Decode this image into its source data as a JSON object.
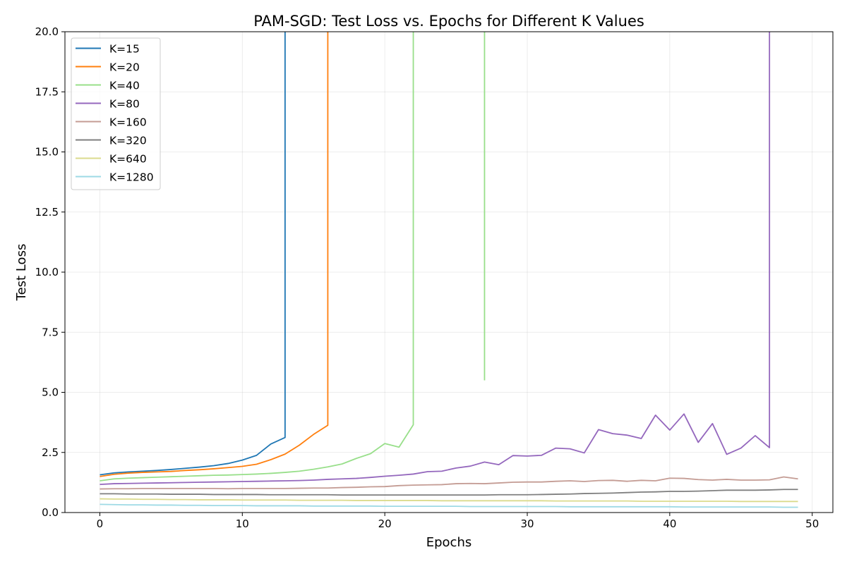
{
  "chart_data": {
    "type": "line",
    "title": "PAM-SGD: Test Loss vs. Epochs for Different K Values",
    "xlabel": "Epochs",
    "ylabel": "Test Loss",
    "xlim": [
      -2.45,
      51.45
    ],
    "ylim": [
      0,
      20
    ],
    "xticks": [
      0,
      10,
      20,
      30,
      40,
      50
    ],
    "yticks": [
      0.0,
      2.5,
      5.0,
      7.5,
      10.0,
      12.5,
      15.0,
      17.5,
      20.0
    ],
    "grid": true,
    "legend_position": "upper-left",
    "series": [
      {
        "name": "K=15",
        "color": "#1f77b4",
        "x": [
          0,
          1,
          2,
          3,
          4,
          5,
          6,
          7,
          8,
          9,
          10,
          11,
          12,
          13,
          13
        ],
        "y": [
          1.57,
          1.65,
          1.69,
          1.72,
          1.75,
          1.79,
          1.84,
          1.89,
          1.95,
          2.04,
          2.18,
          2.38,
          2.85,
          3.12,
          20.5
        ]
      },
      {
        "name": "K=20",
        "color": "#ff7f0e",
        "x": [
          0,
          1,
          2,
          3,
          4,
          5,
          6,
          7,
          8,
          9,
          10,
          11,
          12,
          13,
          14,
          15,
          16,
          16
        ],
        "y": [
          1.5,
          1.59,
          1.64,
          1.67,
          1.69,
          1.71,
          1.75,
          1.78,
          1.82,
          1.87,
          1.92,
          2.01,
          2.2,
          2.43,
          2.8,
          3.25,
          3.63,
          20.5
        ]
      },
      {
        "name": "K=40",
        "color": "#98df8a",
        "x": [
          0,
          1,
          2,
          3,
          4,
          5,
          6,
          7,
          8,
          9,
          10,
          11,
          12,
          13,
          14,
          15,
          16,
          17,
          18,
          19,
          20,
          21,
          22,
          22,
          27,
          27
        ],
        "y": [
          1.32,
          1.4,
          1.43,
          1.45,
          1.47,
          1.49,
          1.51,
          1.53,
          1.55,
          1.56,
          1.58,
          1.6,
          1.63,
          1.67,
          1.72,
          1.8,
          1.9,
          2.02,
          2.25,
          2.45,
          2.87,
          2.72,
          3.65,
          20.5,
          20.5,
          5.5
        ]
      },
      {
        "name": "K=80",
        "color": "#9467bd",
        "x": [
          0,
          1,
          2,
          3,
          4,
          5,
          6,
          7,
          8,
          9,
          10,
          11,
          12,
          13,
          14,
          15,
          16,
          17,
          18,
          19,
          20,
          21,
          22,
          23,
          24,
          25,
          26,
          27,
          28,
          29,
          30,
          31,
          32,
          33,
          34,
          35,
          36,
          37,
          38,
          39,
          40,
          41,
          42,
          43,
          44,
          45,
          46,
          47,
          47
        ],
        "y": [
          1.17,
          1.2,
          1.21,
          1.22,
          1.23,
          1.24,
          1.25,
          1.26,
          1.27,
          1.28,
          1.29,
          1.3,
          1.31,
          1.32,
          1.33,
          1.35,
          1.38,
          1.4,
          1.42,
          1.46,
          1.51,
          1.55,
          1.6,
          1.7,
          1.72,
          1.85,
          1.93,
          2.1,
          1.99,
          2.37,
          2.35,
          2.38,
          2.68,
          2.65,
          2.48,
          3.45,
          3.28,
          3.22,
          3.08,
          4.05,
          3.43,
          4.1,
          2.92,
          3.7,
          2.42,
          2.68,
          3.2,
          2.7,
          20.5
        ]
      },
      {
        "name": "K=160",
        "color": "#c49c94",
        "x": [
          0,
          1,
          2,
          3,
          4,
          5,
          6,
          7,
          8,
          9,
          10,
          11,
          12,
          13,
          14,
          15,
          16,
          17,
          18,
          19,
          20,
          21,
          22,
          23,
          24,
          25,
          26,
          27,
          28,
          29,
          30,
          31,
          32,
          33,
          34,
          35,
          36,
          37,
          38,
          39,
          40,
          41,
          42,
          43,
          44,
          45,
          46,
          47,
          48,
          49
        ],
        "y": [
          0.98,
          0.99,
          0.99,
          1.0,
          1.0,
          1.0,
          1.0,
          1.0,
          1.0,
          0.99,
          1.0,
          1.0,
          1.0,
          1.0,
          1.01,
          1.02,
          1.02,
          1.04,
          1.05,
          1.07,
          1.08,
          1.12,
          1.14,
          1.15,
          1.16,
          1.2,
          1.21,
          1.2,
          1.23,
          1.26,
          1.27,
          1.27,
          1.3,
          1.32,
          1.29,
          1.33,
          1.34,
          1.3,
          1.34,
          1.32,
          1.43,
          1.42,
          1.37,
          1.35,
          1.38,
          1.35,
          1.35,
          1.36,
          1.48,
          1.4
        ]
      },
      {
        "name": "K=320",
        "color": "#7f7f7f",
        "x": [
          0,
          1,
          2,
          3,
          4,
          5,
          6,
          7,
          8,
          9,
          10,
          11,
          12,
          13,
          14,
          15,
          16,
          17,
          18,
          19,
          20,
          21,
          22,
          23,
          24,
          25,
          26,
          27,
          28,
          29,
          30,
          31,
          32,
          33,
          34,
          35,
          36,
          37,
          38,
          39,
          40,
          41,
          42,
          43,
          44,
          45,
          46,
          47,
          48,
          49
        ],
        "y": [
          0.78,
          0.78,
          0.77,
          0.77,
          0.77,
          0.76,
          0.76,
          0.76,
          0.75,
          0.75,
          0.75,
          0.75,
          0.74,
          0.74,
          0.74,
          0.74,
          0.74,
          0.73,
          0.73,
          0.73,
          0.73,
          0.73,
          0.73,
          0.73,
          0.73,
          0.73,
          0.73,
          0.73,
          0.74,
          0.74,
          0.74,
          0.75,
          0.76,
          0.77,
          0.79,
          0.8,
          0.81,
          0.83,
          0.85,
          0.86,
          0.88,
          0.88,
          0.89,
          0.91,
          0.93,
          0.93,
          0.93,
          0.94,
          0.96,
          0.96
        ]
      },
      {
        "name": "K=640",
        "color": "#dbdb8d",
        "x": [
          0,
          1,
          2,
          3,
          4,
          5,
          6,
          7,
          8,
          9,
          10,
          11,
          12,
          13,
          14,
          15,
          16,
          17,
          18,
          19,
          20,
          21,
          22,
          23,
          24,
          25,
          26,
          27,
          28,
          29,
          30,
          31,
          32,
          33,
          34,
          35,
          36,
          37,
          38,
          39,
          40,
          41,
          42,
          43,
          44,
          45,
          46,
          47,
          48,
          49
        ],
        "y": [
          0.57,
          0.56,
          0.56,
          0.55,
          0.55,
          0.54,
          0.54,
          0.53,
          0.53,
          0.53,
          0.52,
          0.52,
          0.52,
          0.52,
          0.51,
          0.51,
          0.51,
          0.51,
          0.5,
          0.5,
          0.5,
          0.5,
          0.5,
          0.5,
          0.49,
          0.49,
          0.49,
          0.49,
          0.49,
          0.49,
          0.49,
          0.49,
          0.48,
          0.48,
          0.48,
          0.48,
          0.48,
          0.48,
          0.47,
          0.47,
          0.47,
          0.47,
          0.47,
          0.47,
          0.47,
          0.46,
          0.46,
          0.46,
          0.46,
          0.46
        ]
      },
      {
        "name": "K=1280",
        "color": "#9edae5",
        "x": [
          0,
          1,
          2,
          3,
          4,
          5,
          6,
          7,
          8,
          9,
          10,
          11,
          12,
          13,
          14,
          15,
          16,
          17,
          18,
          19,
          20,
          21,
          22,
          23,
          24,
          25,
          26,
          27,
          28,
          29,
          30,
          31,
          32,
          33,
          34,
          35,
          36,
          37,
          38,
          39,
          40,
          41,
          42,
          43,
          44,
          45,
          46,
          47,
          48,
          49
        ],
        "y": [
          0.34,
          0.33,
          0.32,
          0.32,
          0.31,
          0.31,
          0.3,
          0.3,
          0.29,
          0.29,
          0.29,
          0.28,
          0.28,
          0.28,
          0.28,
          0.27,
          0.27,
          0.27,
          0.27,
          0.27,
          0.26,
          0.26,
          0.26,
          0.26,
          0.26,
          0.26,
          0.25,
          0.25,
          0.25,
          0.25,
          0.25,
          0.25,
          0.25,
          0.24,
          0.24,
          0.24,
          0.24,
          0.24,
          0.24,
          0.24,
          0.24,
          0.23,
          0.23,
          0.23,
          0.23,
          0.23,
          0.23,
          0.23,
          0.22,
          0.22
        ]
      }
    ]
  }
}
